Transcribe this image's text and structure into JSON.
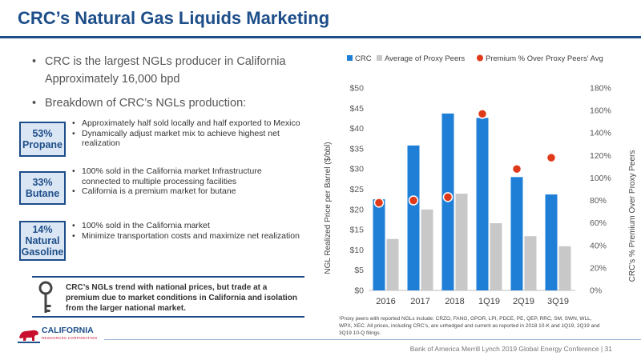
{
  "slide": {
    "title": "CRC’s Natural Gas Liquids Marketing",
    "bullets": [
      "CRC is the largest NGLs producer in California",
      "Breakdown of CRC’s NGLs production:"
    ],
    "bullet_sub": "Approximately 16,000 bpd"
  },
  "segments": [
    {
      "pct": "53%",
      "name": "Propane",
      "items": [
        "Approximately half sold locally and half exported to Mexico",
        "Dynamically adjust market mix to achieve highest net realization"
      ]
    },
    {
      "pct": "33%",
      "name": "Butane",
      "items": [
        "100% sold in the California market Infrastructure connected to multiple processing facilities",
        "California is a premium market for butane"
      ]
    },
    {
      "pct": "14%",
      "name": "Natural Gasoline",
      "items": [
        "100% sold in the California market",
        "Minimize transportation costs and maximize net realization"
      ]
    }
  ],
  "callout": {
    "text": "CRC’s NGLs trend with national prices, but trade at a premium due to market conditions in California and isolation from the larger national market.",
    "icon": "key-icon"
  },
  "logo": {
    "name": "CALIFORNIA",
    "sub": "RESOURCES CORPORATION",
    "icon": "bear-icon"
  },
  "footer": {
    "text": "Bank of America Merrill Lynch 2019 Global Energy Conference | 31"
  },
  "footnote": "¹Proxy peers with reported NGLs include: CRZO, FANG, GPOR, LPI, PDCE, PE, QEP, RRC, SM, SWN, WLL, WPX, XEC. All prices, including CRC’s, are unhedged and current as reported in 2018 10-K and 1Q19, 2Q19 and 3Q19 10-Q filings.",
  "colors": {
    "accent": "#1d4e89",
    "crc_bar": "#1f7fd6",
    "peer_bar": "#c8c8c8",
    "premium_dot": "#e03a1a"
  },
  "chart_data": {
    "type": "bar",
    "categories": [
      "2016",
      "2017",
      "2018",
      "1Q19",
      "2Q19",
      "3Q19"
    ],
    "series": [
      {
        "name": "CRC",
        "type": "bar",
        "axis": "left",
        "values": [
          22.5,
          35.8,
          43.7,
          42.6,
          28.0,
          23.7
        ]
      },
      {
        "name": "Average of Proxy Peers",
        "type": "bar",
        "axis": "left",
        "values": [
          12.7,
          20.0,
          23.9,
          16.6,
          13.4,
          10.9
        ]
      },
      {
        "name": "Premium % Over Proxy Peers' Avg",
        "type": "scatter",
        "axis": "right",
        "values": [
          78,
          80,
          83,
          157,
          108,
          118
        ]
      }
    ],
    "ylabel": "NGL Realized Price per Barrel ($/bbl)",
    "y2label": "CRC's % Premium Over Proxy Peers",
    "ylim": [
      0,
      50
    ],
    "y2lim": [
      0,
      180
    ],
    "yticks": [
      "$0",
      "$5",
      "$10",
      "$15",
      "$20",
      "$25",
      "$30",
      "$35",
      "$40",
      "$45",
      "$50"
    ],
    "y2ticks": [
      "0%",
      "20%",
      "40%",
      "60%",
      "80%",
      "100%",
      "120%",
      "140%",
      "160%",
      "180%"
    ],
    "legend_position": "top",
    "grid": false
  }
}
